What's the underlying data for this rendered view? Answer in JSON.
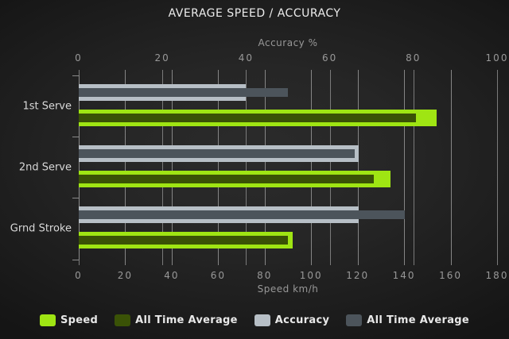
{
  "title": "AVERAGE SPEED / ACCURACY",
  "chart_data": {
    "type": "bar",
    "orientation": "horizontal",
    "title": "AVERAGE SPEED / ACCURACY",
    "categories": [
      "1st Serve",
      "2nd Serve",
      "Grnd Stroke"
    ],
    "series": [
      {
        "name": "Speed",
        "axis": "bottom",
        "role": "outer",
        "color": "#9fe513",
        "values": [
          154,
          134,
          92
        ]
      },
      {
        "name": "All Time Average",
        "axis": "bottom",
        "role": "inner",
        "color": "#3a5206",
        "values": [
          145,
          127,
          90
        ]
      },
      {
        "name": "Accuracy",
        "axis": "top",
        "role": "outer",
        "color": "#b7bfc6",
        "values": [
          40,
          67,
          67
        ]
      },
      {
        "name": "All Time Average",
        "axis": "top",
        "role": "inner",
        "color": "#4c545b",
        "values": [
          50,
          66,
          78
        ]
      }
    ],
    "top_axis": {
      "title": "Accuracy %",
      "min": 0,
      "max": 100,
      "ticks": [
        0,
        20,
        40,
        60,
        80,
        100
      ]
    },
    "bottom_axis": {
      "title": "Speed km/h",
      "min": 0,
      "max": 180,
      "ticks": [
        0,
        20,
        40,
        60,
        80,
        100,
        120,
        140,
        160,
        180
      ]
    },
    "grid": true,
    "legend_position": "bottom",
    "legend": [
      {
        "label": "Speed",
        "color": "#9fe513",
        "key": "speed"
      },
      {
        "label": "All Time Average",
        "color": "#3a5206",
        "key": "all-time-average-speed"
      },
      {
        "label": "Accuracy",
        "color": "#b7bfc6",
        "key": "accuracy"
      },
      {
        "label": "All Time Average",
        "color": "#4c545b",
        "key": "all-time-average-accuracy"
      }
    ]
  },
  "colors": {
    "background_center": "#2b2b2b",
    "background_edge": "#151515",
    "gridline": "#858585",
    "axis_text": "#989898",
    "category_text": "#d8d8d8",
    "title_text": "#ececec",
    "legend_text": "#e8e8e8"
  }
}
